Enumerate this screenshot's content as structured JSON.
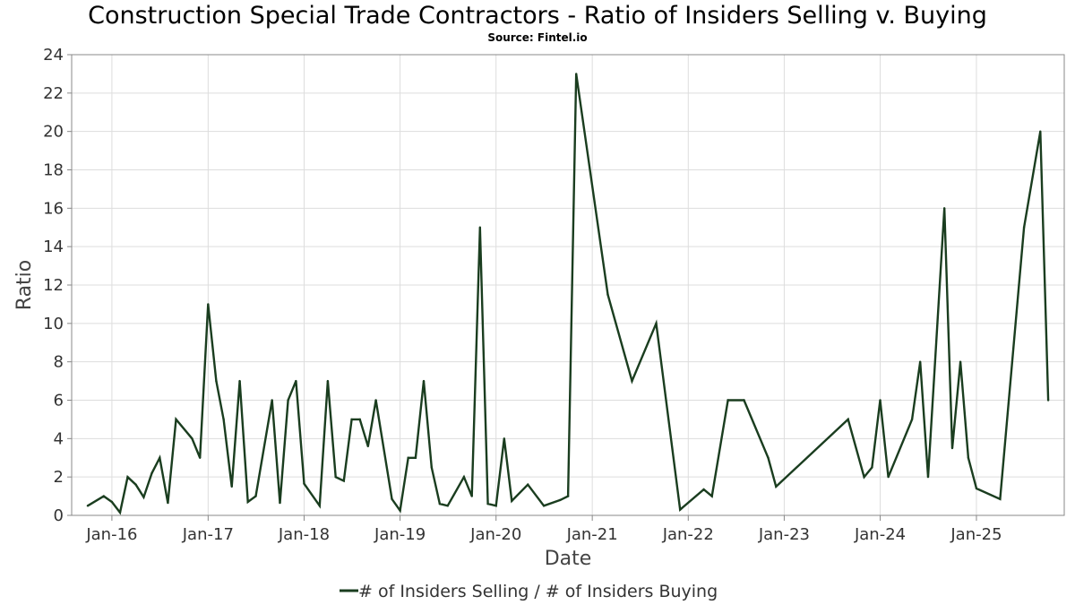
{
  "chart_data": {
    "type": "line",
    "title": "Construction Special Trade Contractors - Ratio of Insiders Selling v. Buying",
    "subtitle": "Source: Fintel.io",
    "xlabel": "Date",
    "ylabel": "Ratio",
    "ylim": [
      0,
      24
    ],
    "xlim": [
      "2015-08-01",
      "2025-12-01"
    ],
    "y_ticks": [
      "0",
      "2",
      "4",
      "6",
      "8",
      "10",
      "12",
      "14",
      "16",
      "18",
      "20",
      "22",
      "24"
    ],
    "x_ticks": [
      {
        "label": "Jan-16",
        "date": "2016-01-01"
      },
      {
        "label": "Jan-17",
        "date": "2017-01-01"
      },
      {
        "label": "Jan-18",
        "date": "2018-01-01"
      },
      {
        "label": "Jan-19",
        "date": "2019-01-01"
      },
      {
        "label": "Jan-20",
        "date": "2020-01-01"
      },
      {
        "label": "Jan-21",
        "date": "2021-01-01"
      },
      {
        "label": "Jan-22",
        "date": "2022-01-01"
      },
      {
        "label": "Jan-23",
        "date": "2023-01-01"
      },
      {
        "label": "Jan-24",
        "date": "2024-01-01"
      },
      {
        "label": "Jan-25",
        "date": "2025-01-01"
      }
    ],
    "grid": true,
    "legend_position": "bottom-center",
    "series": [
      {
        "name": "# of Insiders Selling / # of Insiders Buying",
        "color": "#1a3d1f",
        "points": [
          [
            "2015-10-01",
            0.5
          ],
          [
            "2015-12-01",
            1.0
          ],
          [
            "2016-01-01",
            0.7
          ],
          [
            "2016-02-01",
            0.15
          ],
          [
            "2016-03-01",
            2.0
          ],
          [
            "2016-04-01",
            1.6
          ],
          [
            "2016-05-01",
            0.95
          ],
          [
            "2016-06-01",
            2.2
          ],
          [
            "2016-07-01",
            3.0
          ],
          [
            "2016-08-01",
            0.65
          ],
          [
            "2016-09-01",
            5.0
          ],
          [
            "2016-11-01",
            4.0
          ],
          [
            "2016-12-01",
            3.0
          ],
          [
            "2017-01-01",
            11.0
          ],
          [
            "2017-02-01",
            7.0
          ],
          [
            "2017-03-01",
            5.0
          ],
          [
            "2017-04-01",
            1.5
          ],
          [
            "2017-05-01",
            7.0
          ],
          [
            "2017-06-01",
            0.7
          ],
          [
            "2017-07-01",
            1.0
          ],
          [
            "2017-09-01",
            6.0
          ],
          [
            "2017-10-01",
            0.65
          ],
          [
            "2017-11-01",
            6.0
          ],
          [
            "2017-12-01",
            7.0
          ],
          [
            "2018-01-01",
            1.65
          ],
          [
            "2018-03-01",
            0.5
          ],
          [
            "2018-04-01",
            7.0
          ],
          [
            "2018-05-01",
            2.0
          ],
          [
            "2018-06-01",
            1.8
          ],
          [
            "2018-07-01",
            5.0
          ],
          [
            "2018-08-01",
            5.0
          ],
          [
            "2018-09-01",
            3.6
          ],
          [
            "2018-10-01",
            6.0
          ],
          [
            "2018-12-01",
            0.85
          ],
          [
            "2019-01-01",
            0.25
          ],
          [
            "2019-02-01",
            3.0
          ],
          [
            "2019-03-01",
            3.0
          ],
          [
            "2019-04-01",
            7.0
          ],
          [
            "2019-05-01",
            2.5
          ],
          [
            "2019-06-01",
            0.6
          ],
          [
            "2019-07-01",
            0.5
          ],
          [
            "2019-09-01",
            2.0
          ],
          [
            "2019-10-01",
            1.0
          ],
          [
            "2019-11-01",
            15.0
          ],
          [
            "2019-12-01",
            0.6
          ],
          [
            "2020-01-01",
            0.5
          ],
          [
            "2020-02-01",
            4.0
          ],
          [
            "2020-03-01",
            0.75
          ],
          [
            "2020-05-01",
            1.6
          ],
          [
            "2020-07-01",
            0.5
          ],
          [
            "2020-09-01",
            0.8
          ],
          [
            "2020-10-01",
            1.0
          ],
          [
            "2020-11-01",
            23.0
          ],
          [
            "2021-03-01",
            11.5
          ],
          [
            "2021-06-01",
            7.0
          ],
          [
            "2021-09-01",
            10.0
          ],
          [
            "2021-12-01",
            0.3
          ],
          [
            "2022-03-01",
            1.35
          ],
          [
            "2022-04-01",
            1.0
          ],
          [
            "2022-06-01",
            6.0
          ],
          [
            "2022-08-01",
            6.0
          ],
          [
            "2022-11-01",
            3.0
          ],
          [
            "2022-12-01",
            1.5
          ],
          [
            "2023-09-01",
            5.0
          ],
          [
            "2023-11-01",
            2.0
          ],
          [
            "2023-12-01",
            2.5
          ],
          [
            "2024-01-01",
            6.0
          ],
          [
            "2024-02-01",
            2.0
          ],
          [
            "2024-05-01",
            5.0
          ],
          [
            "2024-06-01",
            8.0
          ],
          [
            "2024-07-01",
            2.0
          ],
          [
            "2024-09-01",
            16.0
          ],
          [
            "2024-10-01",
            3.5
          ],
          [
            "2024-11-01",
            8.0
          ],
          [
            "2024-12-01",
            3.0
          ],
          [
            "2025-01-01",
            1.4
          ],
          [
            "2025-04-01",
            0.85
          ],
          [
            "2025-07-01",
            15.0
          ],
          [
            "2025-09-01",
            20.0
          ],
          [
            "2025-10-01",
            6.0
          ]
        ]
      }
    ]
  }
}
